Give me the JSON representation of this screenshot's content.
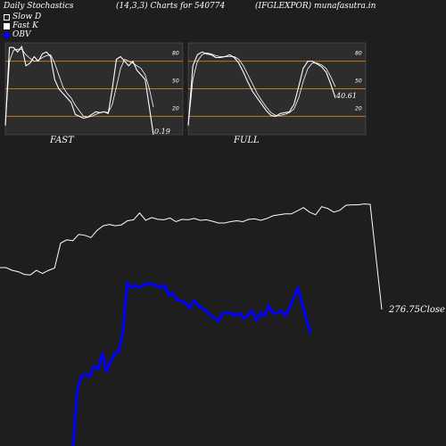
{
  "header": {
    "left": "Daily Stochastics",
    "center": "(14,3,3) Charts for 540774",
    "right": "(IFGLEXPOR) munafasutra.in"
  },
  "legend": [
    {
      "label": "Slow  D",
      "color": "#ffffff",
      "swatch": "hollow-square"
    },
    {
      "label": "Fast K",
      "color": "#ffffff",
      "swatch": "filled-square"
    },
    {
      "label": "OBV",
      "color": "#0000ff",
      "swatch": "dot"
    }
  ],
  "colors": {
    "background": "#1e1e1e",
    "panel": "#2d2d2d",
    "band": "#c07820",
    "line": "#ffffff",
    "obv": "#0000ff"
  },
  "chart_data": [
    {
      "type": "line",
      "title": "FAST",
      "ylim": [
        0,
        100
      ],
      "y_ticks": [
        20,
        50,
        80
      ],
      "bands": [
        20,
        50,
        80
      ],
      "last_value_label": "0.19",
      "series": [
        {
          "name": "Fast K",
          "values": [
            10,
            95,
            95,
            90,
            96,
            75,
            78,
            85,
            80,
            88,
            90,
            85,
            60,
            50,
            45,
            40,
            35,
            22,
            20,
            18,
            19,
            22,
            25,
            24,
            25,
            23,
            50,
            82,
            85,
            80,
            75,
            80,
            70,
            65,
            60,
            30,
            0
          ]
        },
        {
          "name": "Slow  D",
          "values": [
            10,
            80,
            92,
            93,
            93,
            87,
            83,
            80,
            81,
            84,
            86,
            87,
            78,
            65,
            52,
            45,
            40,
            32,
            26,
            20,
            19,
            20,
            22,
            24,
            25,
            24,
            33,
            52,
            72,
            82,
            80,
            78,
            75,
            72,
            65,
            50,
            30
          ]
        }
      ]
    },
    {
      "type": "line",
      "title": "FULL",
      "ylim": [
        0,
        100
      ],
      "y_ticks": [
        20,
        50,
        80
      ],
      "bands": [
        20,
        50,
        80
      ],
      "last_value_label": "40.61",
      "series": [
        {
          "name": "Full K",
          "values": [
            10,
            75,
            87,
            90,
            88,
            87,
            84,
            84,
            85,
            87,
            84,
            78,
            68,
            57,
            47,
            40,
            33,
            26,
            21,
            20,
            23,
            24,
            25,
            33,
            52,
            72,
            80,
            80,
            77,
            74,
            68,
            55,
            40
          ]
        },
        {
          "name": "Full D",
          "values": [
            10,
            60,
            80,
            87,
            89,
            88,
            86,
            85,
            85,
            85,
            85,
            82,
            75,
            65,
            55,
            45,
            37,
            30,
            24,
            21,
            21,
            22,
            24,
            28,
            40,
            58,
            72,
            78,
            78,
            76,
            72,
            63,
            52
          ]
        }
      ]
    },
    {
      "type": "line",
      "title": "",
      "last_value_label": "276.75",
      "last_value_suffix": "Close",
      "series": [
        {
          "name": "Close",
          "values": [
            283.8,
            283.8,
            283.2,
            282.9,
            282.3,
            282.2,
            283.2,
            282.5,
            283.2,
            283.7,
            289.2,
            289.9,
            289.7,
            291.1,
            290.9,
            290.4,
            292.0,
            293.0,
            293.3,
            293.0,
            293.2,
            294.1,
            294.3,
            295.8,
            294.2,
            294.8,
            294.4,
            294.3,
            294.7,
            293.9,
            294.4,
            294.3,
            294.6,
            294.2,
            294.3,
            294.0,
            293.6,
            293.6,
            293.9,
            294.1,
            293.9,
            294.4,
            294.5,
            294.2,
            294.6,
            295.2,
            295.4,
            295.6,
            295.6,
            296.3,
            297.0,
            296.0,
            295.4,
            297.2,
            296.8,
            296.0,
            296.4,
            297.5,
            297.6,
            297.6,
            297.8,
            297.7,
            276.75
          ]
        },
        {
          "name": "OBV",
          "values": [
            -100,
            24,
            29,
            30,
            29,
            33,
            32,
            38,
            31,
            35,
            38,
            39,
            47,
            66,
            64,
            65,
            64,
            65,
            66,
            65,
            65,
            64,
            65,
            61,
            62,
            59,
            59,
            58,
            56,
            59,
            57,
            56,
            55,
            53,
            52,
            51,
            54,
            54,
            54,
            53,
            54,
            52,
            53,
            55,
            51,
            54,
            53,
            57,
            54,
            54,
            55,
            53,
            56,
            60,
            64,
            58,
            52,
            46
          ]
        }
      ]
    }
  ],
  "panels": {
    "fast_label": "FAST",
    "full_label": "FULL"
  }
}
